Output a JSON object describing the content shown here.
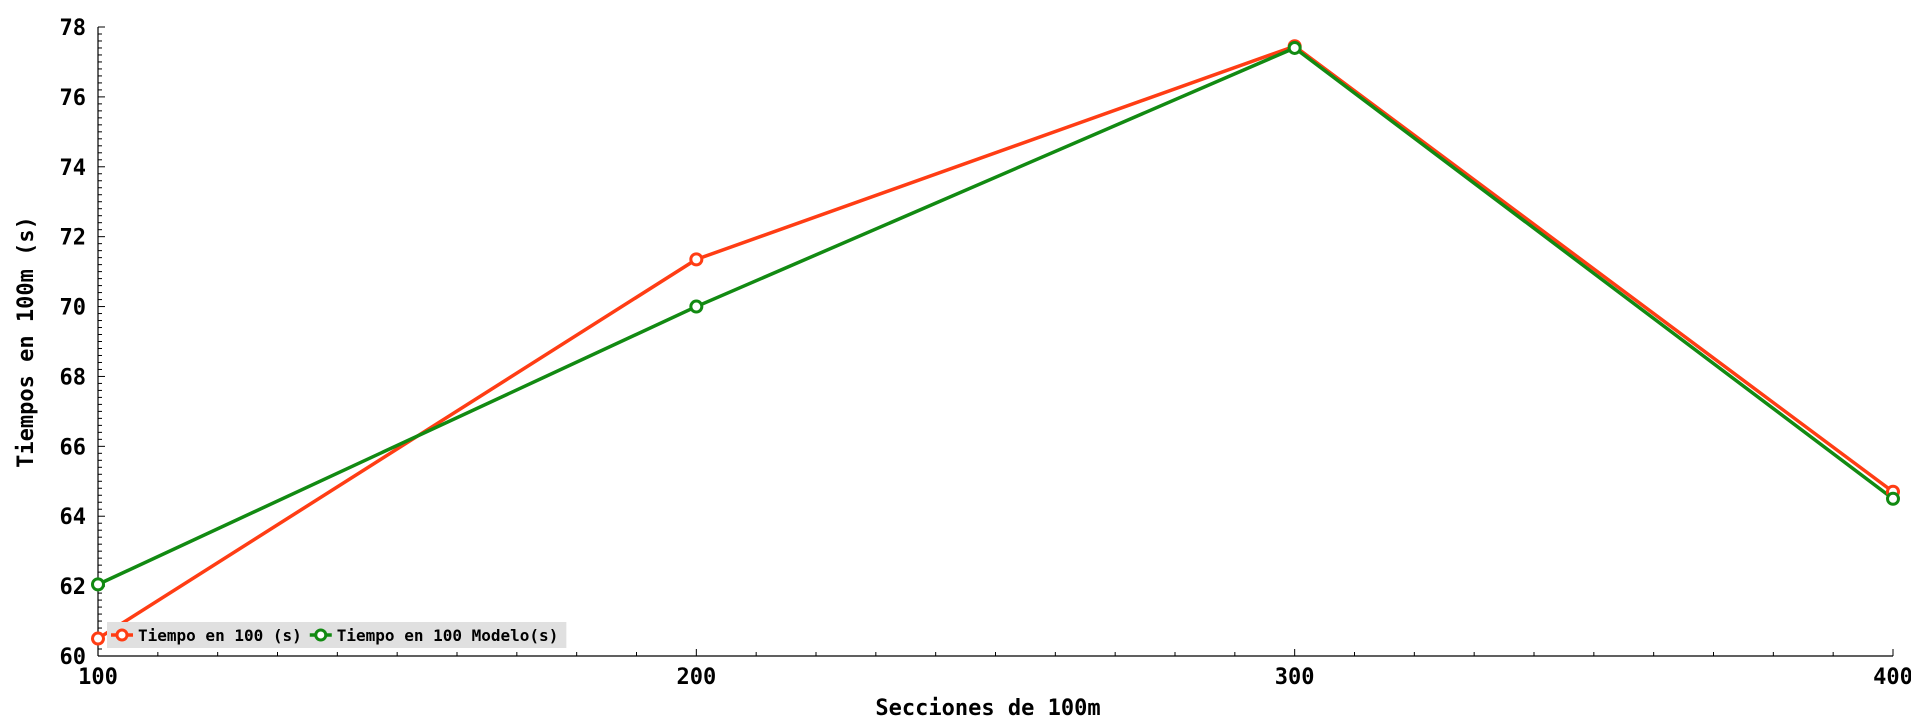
{
  "chart_data": {
    "type": "line",
    "title": "",
    "xlabel": "Secciones de 100m",
    "ylabel": "Tiempos en 100m (s)",
    "x": [
      100,
      200,
      300,
      400
    ],
    "xlim": [
      100,
      400
    ],
    "ylim": [
      60,
      78
    ],
    "xticks": [
      100,
      200,
      300,
      400
    ],
    "yticks": [
      60,
      62,
      64,
      66,
      68,
      70,
      72,
      74,
      76,
      78
    ],
    "grid": false,
    "legend_position": "bottom-left",
    "series": [
      {
        "name": "Tiempo en 100 (s)",
        "color": "#ff3d14",
        "values": [
          60.5,
          71.35,
          77.45,
          64.7
        ]
      },
      {
        "name": "Tiempo en 100 Modelo(s)",
        "color": "#128a12",
        "values": [
          62.05,
          70.0,
          77.4,
          64.5
        ]
      }
    ]
  }
}
